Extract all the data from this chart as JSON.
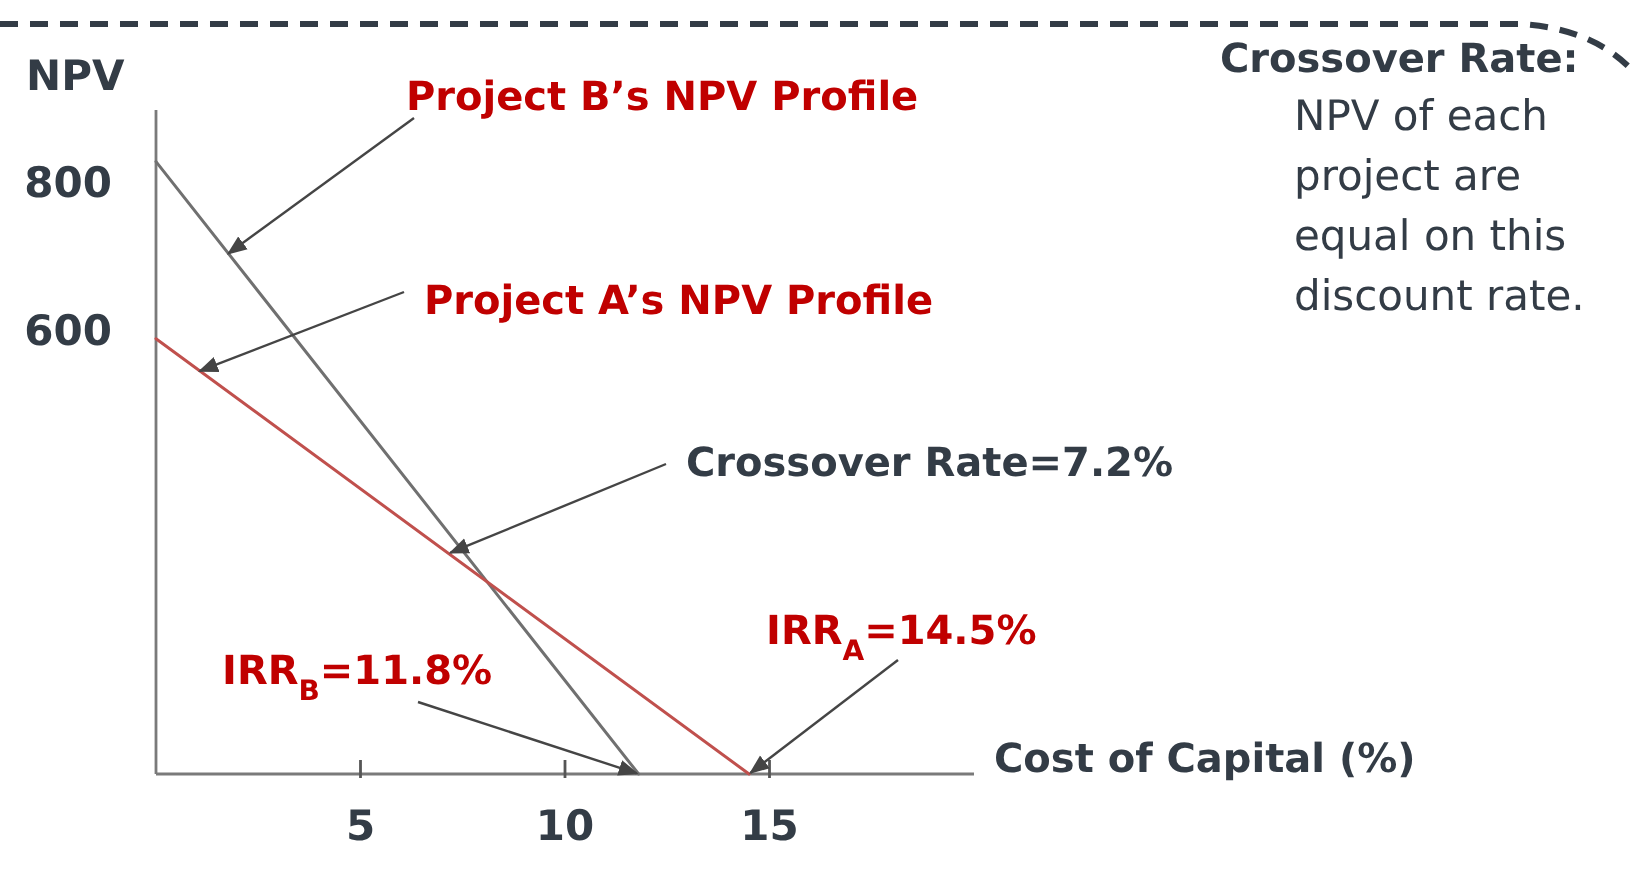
{
  "chart_data": {
    "type": "line",
    "xlabel": "Cost of Capital (%)",
    "ylabel": "NPV",
    "xlim": [
      0,
      20
    ],
    "ylim": [
      0,
      900
    ],
    "xticks": [
      5,
      10,
      15
    ],
    "yticks": [
      600,
      800
    ],
    "series": [
      {
        "name": "Project B’s NPV Profile",
        "color": "#707070",
        "x": [
          0,
          11.8
        ],
        "values": [
          830,
          0
        ]
      },
      {
        "name": "Project A’s NPV Profile",
        "color": "#c0504d",
        "x": [
          0,
          14.5
        ],
        "values": [
          590,
          0
        ]
      }
    ],
    "annotations": [
      {
        "text": "Crossover Rate=7.2%",
        "x": 7.2,
        "y": 300
      },
      {
        "text": "IRR$_{B}$=11.8%",
        "x": 11.8,
        "y": 0
      },
      {
        "text": "IRR$_{A}$=14.5%",
        "x": 14.5,
        "y": 0
      },
      "Crossover Rate:",
      "NPV of each project are equal on this discount rate."
    ]
  }
}
